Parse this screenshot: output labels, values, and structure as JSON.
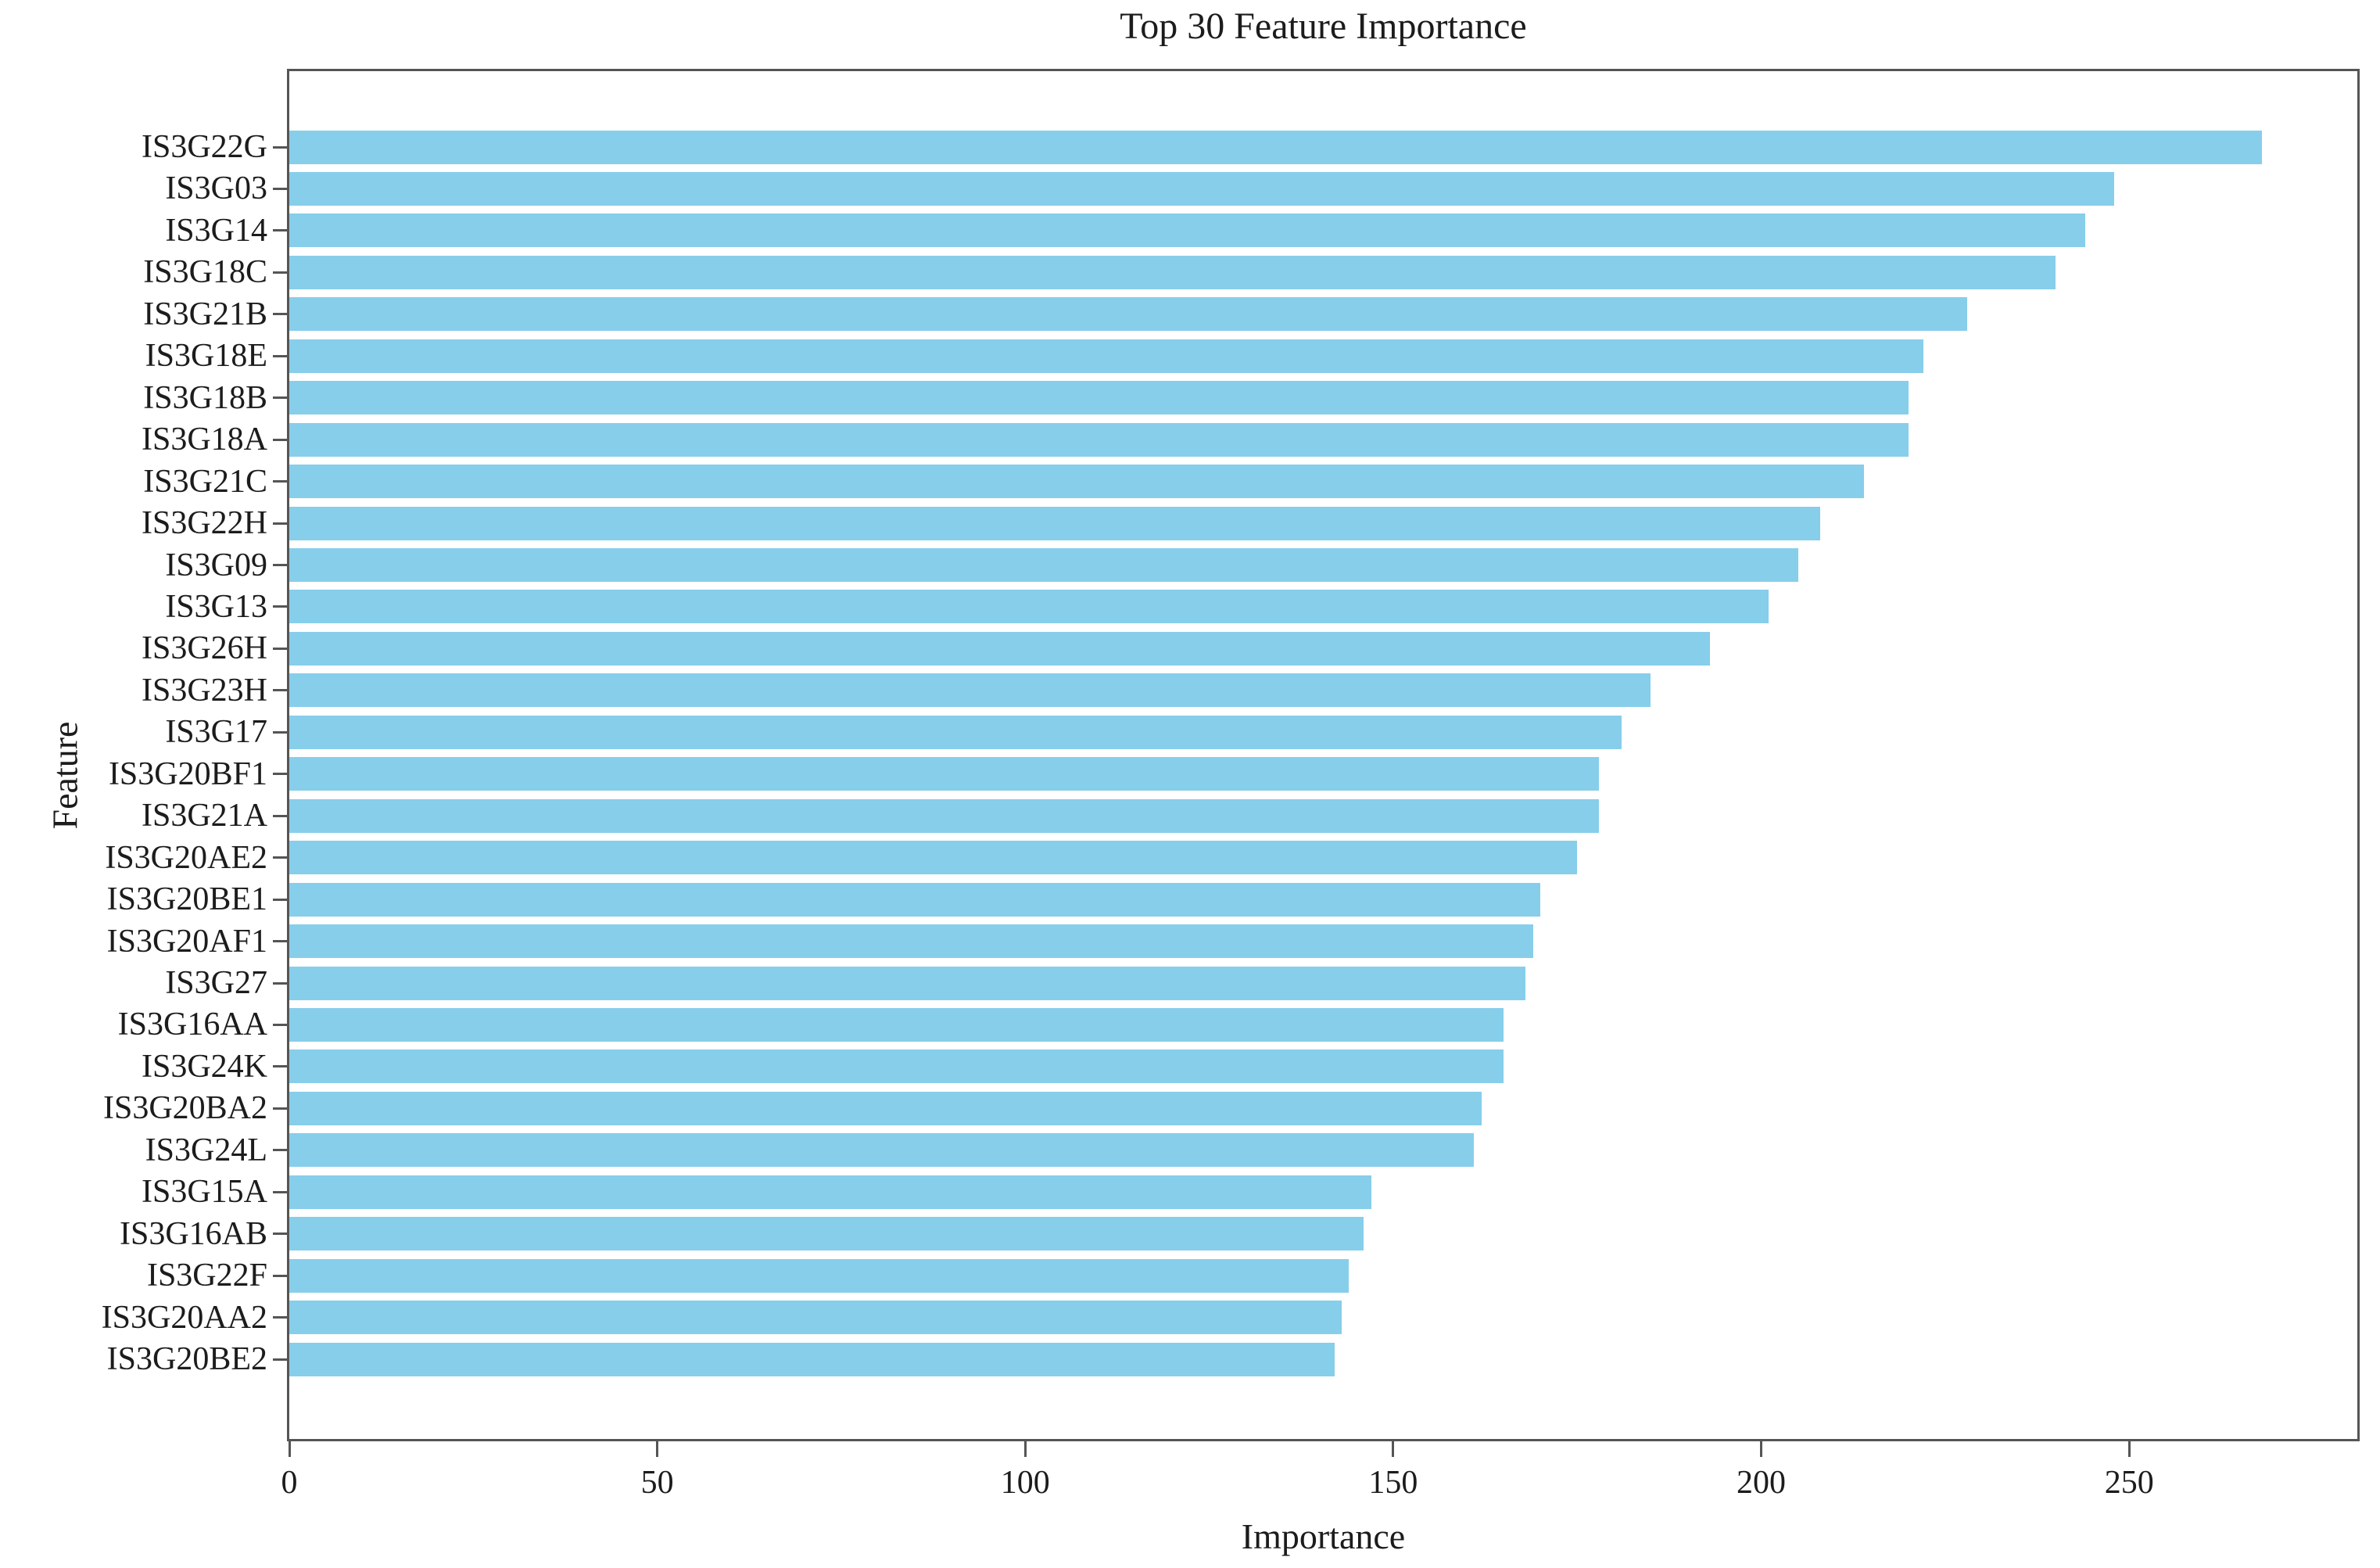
{
  "chart_data": {
    "type": "bar",
    "orientation": "horizontal",
    "title": "Top 30 Feature Importance",
    "xlabel": "Importance",
    "ylabel": "Feature",
    "xlim": [
      0,
      281
    ],
    "xticks": [
      0,
      50,
      100,
      150,
      200,
      250
    ],
    "grid": false,
    "legend": "none",
    "bar_color": "#87CEEB",
    "axis_color": "#555555",
    "categories": [
      "IS3G22G",
      "IS3G03",
      "IS3G14",
      "IS3G18C",
      "IS3G21B",
      "IS3G18E",
      "IS3G18B",
      "IS3G18A",
      "IS3G21C",
      "IS3G22H",
      "IS3G09",
      "IS3G13",
      "IS3G26H",
      "IS3G23H",
      "IS3G17",
      "IS3G20BF1",
      "IS3G21A",
      "IS3G20AE2",
      "IS3G20BE1",
      "IS3G20AF1",
      "IS3G27",
      "IS3G16AA",
      "IS3G24K",
      "IS3G20BA2",
      "IS3G24L",
      "IS3G15A",
      "IS3G16AB",
      "IS3G22F",
      "IS3G20AA2",
      "IS3G20BE2"
    ],
    "values": [
      268,
      248,
      244,
      240,
      228,
      222,
      220,
      220,
      214,
      208,
      205,
      201,
      193,
      185,
      181,
      178,
      178,
      175,
      170,
      169,
      168,
      165,
      165,
      162,
      161,
      147,
      146,
      144,
      143,
      142
    ]
  }
}
